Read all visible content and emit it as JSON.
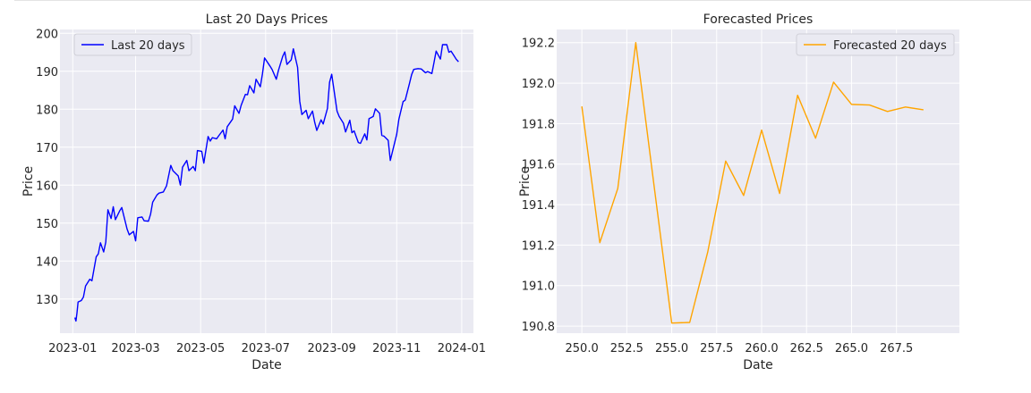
{
  "chart_data": [
    {
      "type": "line",
      "title": "Last 20 Days Prices",
      "xlabel": "Date",
      "ylabel": "Price",
      "x_axis_type": "date",
      "xlim": [
        "2022-12-20",
        "2024-01-12"
      ],
      "ylim": [
        121.0,
        201.0
      ],
      "x_ticks": [
        "2023-01",
        "2023-03",
        "2023-05",
        "2023-07",
        "2023-09",
        "2023-11",
        "2024-01"
      ],
      "y_ticks": [
        130,
        140,
        150,
        160,
        170,
        180,
        190,
        200
      ],
      "grid": true,
      "legend_position": "top-left",
      "series": [
        {
          "name": "Last 20 days",
          "color": "#0000ff",
          "x": [
            "2023-01-03",
            "2023-01-04",
            "2023-01-05",
            "2023-01-06",
            "2023-01-09",
            "2023-01-11",
            "2023-01-13",
            "2023-01-17",
            "2023-01-19",
            "2023-01-23",
            "2023-01-25",
            "2023-01-27",
            "2023-01-30",
            "2023-02-01",
            "2023-02-03",
            "2023-02-06",
            "2023-02-08",
            "2023-02-10",
            "2023-02-14",
            "2023-02-16",
            "2023-02-21",
            "2023-02-23",
            "2023-02-27",
            "2023-03-01",
            "2023-03-03",
            "2023-03-07",
            "2023-03-09",
            "2023-03-13",
            "2023-03-15",
            "2023-03-17",
            "2023-03-21",
            "2023-03-23",
            "2023-03-27",
            "2023-03-30",
            "2023-04-03",
            "2023-04-05",
            "2023-04-10",
            "2023-04-12",
            "2023-04-14",
            "2023-04-18",
            "2023-04-20",
            "2023-04-24",
            "2023-04-26",
            "2023-04-28",
            "2023-05-02",
            "2023-05-04",
            "2023-05-08",
            "2023-05-10",
            "2023-05-12",
            "2023-05-16",
            "2023-05-18",
            "2023-05-22",
            "2023-05-24",
            "2023-05-26",
            "2023-05-31",
            "2023-06-02",
            "2023-06-06",
            "2023-06-08",
            "2023-06-12",
            "2023-06-14",
            "2023-06-16",
            "2023-06-20",
            "2023-06-22",
            "2023-06-26",
            "2023-06-28",
            "2023-06-30",
            "2023-07-05",
            "2023-07-07",
            "2023-07-11",
            "2023-07-13",
            "2023-07-17",
            "2023-07-19",
            "2023-07-21",
            "2023-07-25",
            "2023-07-27",
            "2023-07-31",
            "2023-08-02",
            "2023-08-04",
            "2023-08-08",
            "2023-08-10",
            "2023-08-14",
            "2023-08-16",
            "2023-08-18",
            "2023-08-22",
            "2023-08-24",
            "2023-08-28",
            "2023-08-30",
            "2023-09-01",
            "2023-09-06",
            "2023-09-08",
            "2023-09-12",
            "2023-09-14",
            "2023-09-18",
            "2023-09-20",
            "2023-09-22",
            "2023-09-26",
            "2023-09-28",
            "2023-10-02",
            "2023-10-04",
            "2023-10-06",
            "2023-10-10",
            "2023-10-12",
            "2023-10-16",
            "2023-10-18",
            "2023-10-20",
            "2023-10-24",
            "2023-10-26",
            "2023-10-30",
            "2023-11-01",
            "2023-11-03",
            "2023-11-07",
            "2023-11-09",
            "2023-11-13",
            "2023-11-15",
            "2023-11-17",
            "2023-11-21",
            "2023-11-24",
            "2023-11-28",
            "2023-11-30",
            "2023-12-04",
            "2023-12-06",
            "2023-12-08",
            "2023-12-12",
            "2023-12-14",
            "2023-12-18",
            "2023-12-20",
            "2023-12-22",
            "2023-12-27",
            "2023-12-29"
          ],
          "y": [
            125.1,
            124.2,
            126.4,
            129.2,
            129.6,
            130.5,
            133.4,
            135.2,
            134.8,
            141.1,
            141.9,
            144.8,
            142.4,
            145.0,
            153.5,
            151.2,
            154.3,
            150.9,
            153.2,
            154.1,
            148.4,
            146.9,
            147.8,
            145.3,
            151.4,
            151.6,
            150.6,
            150.5,
            152.3,
            155.5,
            157.4,
            157.9,
            158.2,
            159.8,
            165.2,
            163.8,
            162.4,
            160.0,
            164.7,
            166.5,
            163.8,
            164.9,
            163.8,
            169.1,
            168.9,
            165.8,
            172.8,
            171.6,
            172.5,
            172.2,
            173.0,
            174.5,
            172.2,
            175.4,
            177.4,
            180.9,
            178.9,
            181.0,
            183.9,
            183.8,
            186.2,
            184.3,
            187.9,
            185.9,
            189.3,
            193.5,
            191.4,
            190.5,
            187.9,
            190.2,
            193.9,
            195.1,
            191.8,
            193.0,
            195.9,
            191.0,
            182.1,
            178.6,
            179.7,
            177.5,
            179.5,
            176.6,
            174.4,
            177.2,
            176.1,
            180.2,
            187.1,
            189.2,
            179.5,
            178.1,
            176.3,
            174.0,
            177.1,
            173.8,
            174.3,
            171.2,
            171.0,
            173.5,
            171.9,
            177.5,
            178.1,
            180.1,
            178.9,
            173.1,
            172.9,
            171.8,
            166.5,
            171.1,
            173.4,
            177.3,
            182.0,
            182.4,
            186.8,
            189.1,
            190.5,
            190.7,
            190.6,
            189.6,
            189.9,
            189.4,
            192.3,
            195.3,
            193.2,
            197.0,
            197.0,
            195.0,
            195.3,
            193.1,
            192.5
          ]
        }
      ]
    },
    {
      "type": "line",
      "title": "Forecasted Prices",
      "xlabel": "Date",
      "ylabel": "Price",
      "xlim": [
        248.6,
        271.0
      ],
      "ylim": [
        190.765,
        192.265
      ],
      "x_ticks": [
        "250.0",
        "252.5",
        "255.0",
        "257.5",
        "260.0",
        "262.5",
        "265.0",
        "267.5"
      ],
      "y_ticks": [
        "190.8",
        "191.0",
        "191.2",
        "191.4",
        "191.6",
        "191.8",
        "192.0",
        "192.2"
      ],
      "grid": true,
      "legend_position": "top-right",
      "series": [
        {
          "name": "Forecasted 20 days",
          "color": "#ffa500",
          "x": [
            250,
            251,
            252,
            253,
            254,
            255,
            256,
            257,
            258,
            259,
            260,
            261,
            262,
            263,
            264,
            265,
            266,
            267,
            268,
            269
          ],
          "y": [
            191.885,
            191.212,
            191.48,
            192.2,
            191.505,
            190.815,
            190.818,
            191.165,
            191.615,
            191.445,
            191.768,
            191.455,
            191.94,
            191.728,
            192.005,
            191.895,
            191.892,
            191.86,
            191.882,
            191.868
          ]
        }
      ]
    }
  ]
}
